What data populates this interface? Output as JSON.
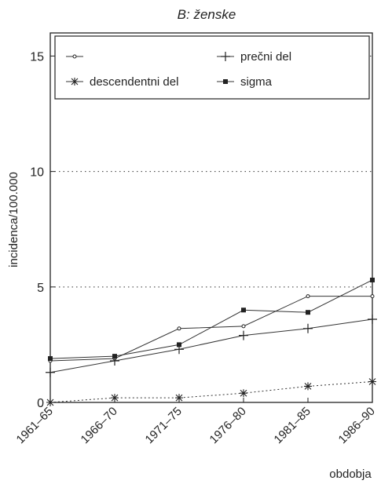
{
  "chart_data": {
    "type": "line",
    "title": "B: ženske",
    "xlabel": "obdobja",
    "ylabel": "incidenca/100.000",
    "categories": [
      "1961-65",
      "1966-70",
      "1971-75",
      "1976-80",
      "1981-85",
      "1986-90"
    ],
    "y_ticks": [
      "0",
      "5",
      "10",
      "15"
    ],
    "ylim": [
      0,
      16
    ],
    "grid": "dotted horizontal at 5 and 10",
    "legend_position": "top",
    "series": [
      {
        "name": "",
        "marker": "small-circle",
        "values": [
          1.8,
          1.9,
          3.2,
          3.3,
          4.6,
          4.6
        ]
      },
      {
        "name": "prečni del",
        "marker": "plus",
        "values": [
          1.3,
          1.8,
          2.3,
          2.9,
          3.2,
          3.6
        ]
      },
      {
        "name": "descendentni del",
        "marker": "asterisk",
        "values": [
          0.0,
          0.2,
          0.2,
          0.4,
          0.7,
          0.9
        ]
      },
      {
        "name": "sigma",
        "marker": "filled-square",
        "values": [
          1.9,
          2.0,
          2.5,
          4.0,
          3.9,
          5.3
        ]
      }
    ]
  }
}
